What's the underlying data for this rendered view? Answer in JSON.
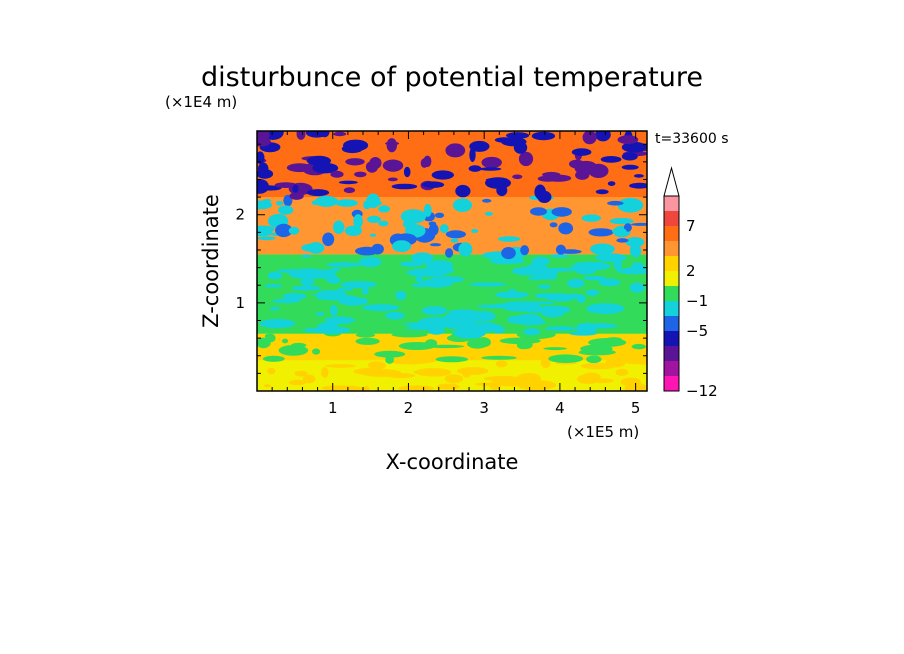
{
  "chart_data": {
    "type": "heatmap",
    "title": "disturbunce of potential temperature",
    "xlabel": "X-coordinate",
    "ylabel": "Z-coordinate",
    "x_unit": "(×1E5 m)",
    "y_unit": "(×1E4 m)",
    "time_label": "t=33600 s",
    "xlim": [
      0,
      5.15
    ],
    "ylim": [
      0,
      2.95
    ],
    "x_ticks": [
      "1",
      "2",
      "3",
      "4",
      "5"
    ],
    "y_ticks": [
      "1",
      "2"
    ],
    "colorbar": {
      "labels": [
        "7",
        "2",
        "−1",
        "−5",
        "−12"
      ],
      "colors": [
        "#fa96a0",
        "#f0463c",
        "#ff6e14",
        "#ff9632",
        "#ffd200",
        "#f0f000",
        "#32dc5a",
        "#14d2dc",
        "#1e64e6",
        "#1414b4",
        "#5a1496",
        "#a014a0",
        "#ff14b4"
      ]
    },
    "field_bands": [
      {
        "z_range": [
          0.0,
          0.35
        ],
        "description": "mostly 0 to +2",
        "colors": [
          "#f0f000",
          "#ffd200"
        ]
      },
      {
        "z_range": [
          0.35,
          0.65
        ],
        "description": "mixed, patches of -1 to 0",
        "colors": [
          "#ffd200",
          "#32dc5a"
        ]
      },
      {
        "z_range": [
          0.65,
          1.55
        ],
        "description": "mostly -1 to 0",
        "colors": [
          "#32dc5a",
          "#14d2dc"
        ]
      },
      {
        "z_range": [
          1.55,
          2.2
        ],
        "description": "mixed +2 to -5",
        "colors": [
          "#ff9632",
          "#14d2dc",
          "#1e64e6"
        ]
      },
      {
        "z_range": [
          2.2,
          2.95
        ],
        "description": "strong disturbances, -12 to +7",
        "colors": [
          "#ff6e14",
          "#1414b4",
          "#5a1496"
        ]
      }
    ]
  }
}
